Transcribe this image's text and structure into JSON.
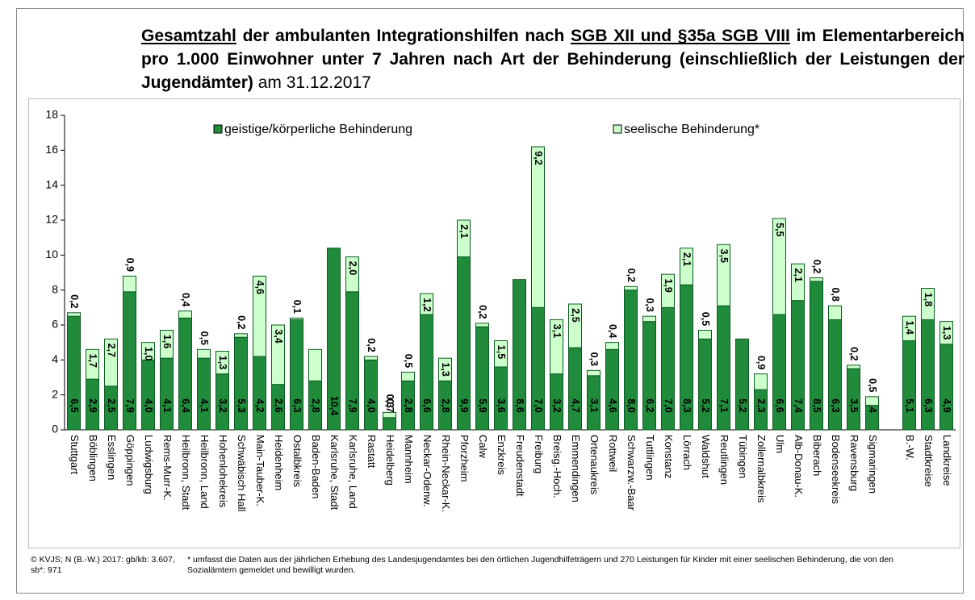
{
  "chart_data": {
    "type": "stacked_bar",
    "title_parts": [
      {
        "text": "Gesamtzahl",
        "bold": true,
        "underline": true
      },
      {
        "text": " der ambulanten Integrationshilfen nach ",
        "bold": true,
        "underline": false
      },
      {
        "text": "SGB XII und §35a SGB VIII",
        "bold": true,
        "underline": true
      },
      {
        "text": " im Elementarbereich pro 1.000 Einwohner unter 7 Jahren nach Art der Behinderung (einschließlich der Leistungen der Jugendämter)",
        "bold": true,
        "underline": false
      },
      {
        "text": " am 31.12.2017",
        "bold": false,
        "underline": false
      }
    ],
    "categories": [
      "Stuttgart",
      "Böblingen",
      "Esslingen",
      "Göppingen",
      "Ludwigsburg",
      "Rems-Murr-K.",
      "Heilbronn, Stadt",
      "Heilbronn, Land",
      "Hohenlohekreis",
      "Schwäbisch Hall",
      "Main-Tauber-K.",
      "Heidenheim",
      "Ostalbkreis",
      "Baden-Baden",
      "Karlsruhe, Stadt",
      "Karlsruhe, Land",
      "Rastatt",
      "Heidelberg",
      "Mannheim",
      "Neckar-Odenw.",
      "Rhein-Neckar-K.",
      "Pforzheim",
      "Calw",
      "Enzkreis",
      "Freudenstadt",
      "Freiburg",
      "Breisg.-Hoch.",
      "Emmendingen",
      "Ortenaukreis",
      "Rottweil",
      "Schwarzw.-Baar",
      "Tuttlingen",
      "Konstanz",
      "Lörrach",
      "Waldshut",
      "Reutlingen",
      "Tübingen",
      "Zollernalbkreis",
      "Ulm",
      "Alb-Donau-K.",
      "Biberach",
      "Bodenseekreis",
      "Ravensburg",
      "Sigmaringen",
      null,
      "B.-W.",
      "Stadtkreise",
      "Landkreise"
    ],
    "series": [
      {
        "name": "geistige/körperliche Behinderung",
        "color": "#1f8b3b",
        "values": [
          6.5,
          2.9,
          2.5,
          7.9,
          4.0,
          4.1,
          6.4,
          4.1,
          3.2,
          5.3,
          4.2,
          2.6,
          6.3,
          2.8,
          10.4,
          7.9,
          4.0,
          0.7,
          2.8,
          6.6,
          2.8,
          9.9,
          5.9,
          3.6,
          8.6,
          7.0,
          3.2,
          4.7,
          3.1,
          4.6,
          8.0,
          6.2,
          7.0,
          8.3,
          5.2,
          7.1,
          5.2,
          2.3,
          6.6,
          7.4,
          8.5,
          6.3,
          3.5,
          1.4,
          null,
          5.1,
          6.3,
          4.9
        ],
        "value_labels": [
          "6,5",
          "2,9",
          "2,5",
          "7,9",
          "4,0",
          "4,1",
          "6,4",
          "4,1",
          "3,2",
          "5,3",
          "4,2",
          "2,6",
          "6,3",
          "2,8",
          "10,4",
          "7,9",
          "4,0",
          "0,7",
          "2,8",
          "6,6",
          "2,8",
          "9,9",
          "5,9",
          "3,6",
          "8,6",
          "7,0",
          "3,2",
          "4,7",
          "3,1",
          "4,6",
          "8,0",
          "6,2",
          "7,0",
          "8,3",
          "5,2",
          "7,1",
          "5,2",
          "2,3",
          "6,6",
          "7,4",
          "8,5",
          "6,3",
          "3,5",
          "1,4",
          null,
          "5,1",
          "6,3",
          "4,9"
        ]
      },
      {
        "name": "seelische Behinderung*",
        "color": "#ccffcc",
        "values": [
          0.2,
          1.7,
          2.7,
          0.9,
          1.0,
          1.6,
          0.4,
          0.5,
          1.3,
          0.2,
          4.6,
          3.4,
          0.1,
          1.8,
          0,
          2.0,
          0.2,
          0.3,
          0.5,
          1.2,
          1.3,
          2.1,
          0.2,
          1.5,
          0,
          9.2,
          3.1,
          2.5,
          0.3,
          0.4,
          0.2,
          0.3,
          1.9,
          2.1,
          0.5,
          3.5,
          0,
          0.9,
          5.5,
          2.1,
          0.2,
          0.8,
          0.2,
          0.5,
          null,
          1.4,
          1.8,
          1.3
        ],
        "value_labels": [
          "0,2",
          "1,7",
          "2,7",
          "0,9",
          "1,0",
          "1,6",
          "0,4",
          "0,5",
          "1,3",
          "0,2",
          "4,6",
          "3,4",
          "0,1",
          null,
          null,
          "2,0",
          "0,2",
          "0,3",
          "0,5",
          "1,2",
          "1,3",
          "2,1",
          "0,2",
          "1,5",
          null,
          "9,2",
          "3,1",
          "2,5",
          "0,3",
          "0,4",
          "0,2",
          "0,3",
          "1,9",
          "2,1",
          "0,5",
          "3,5",
          null,
          "0,9",
          "5,5",
          "2,1",
          "0,2",
          "0,8",
          "0,2",
          "0,5",
          null,
          "1,4",
          "1,8",
          "1,3"
        ]
      }
    ],
    "ylim": [
      0,
      18
    ],
    "yticks": [
      0,
      2,
      4,
      6,
      8,
      10,
      12,
      14,
      16,
      18
    ],
    "grid": false,
    "source_note": "© KVJS; N (B.-W.) 2017: gb/kb: 3.607, sb*: 971",
    "footnote": "* umfasst die Daten aus der jährlichen Erhebung des Landesjugendamtes bei den örtlichen Jugendhilfeträgern und 270 Leistungen für Kinder mit einer seelischen Behinderung, die von den Sozialämtern gemeldet und bewilligt wurden."
  }
}
